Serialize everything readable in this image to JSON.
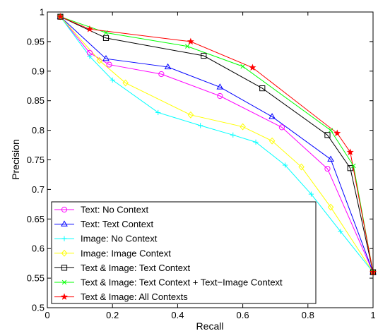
{
  "chart_data": {
    "type": "line",
    "xlabel": "Recall",
    "ylabel": "Precision",
    "xlim": [
      0,
      1
    ],
    "ylim": [
      0.5,
      1
    ],
    "xticks": [
      "0",
      "0.2",
      "0.4",
      "0.6",
      "0.8",
      "1"
    ],
    "yticks": [
      "0.5",
      "0.55",
      "0.6",
      "0.65",
      "0.7",
      "0.75",
      "0.8",
      "0.85",
      "0.9",
      "0.95",
      "1"
    ],
    "grid": false,
    "legend_position": "bottom-left",
    "series": [
      {
        "name": "Text: No Context",
        "color": "#ff00ff",
        "marker": "circle",
        "x": [
          0.04,
          0.13,
          0.19,
          0.35,
          0.53,
          0.72,
          0.86,
          1.0
        ],
        "y": [
          0.992,
          0.931,
          0.911,
          0.895,
          0.858,
          0.805,
          0.735,
          0.56
        ]
      },
      {
        "name": "Text: Text Context",
        "color": "#0000ff",
        "marker": "triangle",
        "x": [
          0.04,
          0.18,
          0.37,
          0.53,
          0.69,
          0.87,
          1.0
        ],
        "y": [
          0.992,
          0.921,
          0.907,
          0.873,
          0.823,
          0.751,
          0.56
        ]
      },
      {
        "name": "Image: No Context",
        "color": "#00ffff",
        "marker": "plus",
        "x": [
          0.04,
          0.13,
          0.2,
          0.34,
          0.47,
          0.57,
          0.64,
          0.73,
          0.81,
          0.9,
          1.0
        ],
        "y": [
          0.992,
          0.925,
          0.885,
          0.83,
          0.808,
          0.792,
          0.78,
          0.741,
          0.692,
          0.629,
          0.56
        ]
      },
      {
        "name": "Image: Image Context",
        "color": "#ffff00",
        "marker": "diamond",
        "x": [
          0.04,
          0.16,
          0.24,
          0.44,
          0.6,
          0.69,
          0.78,
          0.87,
          1.0
        ],
        "y": [
          0.992,
          0.918,
          0.88,
          0.826,
          0.806,
          0.782,
          0.738,
          0.67,
          0.56
        ]
      },
      {
        "name": "Text & Image: Text Context",
        "color": "#000000",
        "marker": "square",
        "x": [
          0.04,
          0.18,
          0.48,
          0.66,
          0.86,
          0.93,
          1.0
        ],
        "y": [
          0.992,
          0.956,
          0.926,
          0.871,
          0.792,
          0.736,
          0.56
        ]
      },
      {
        "name": "Text & Image: Text Context + Text−Image Context",
        "color": "#00ff00",
        "marker": "x",
        "x": [
          0.04,
          0.18,
          0.43,
          0.6,
          0.87,
          0.94,
          1.0
        ],
        "y": [
          0.992,
          0.965,
          0.942,
          0.908,
          0.8,
          0.74,
          0.56
        ]
      },
      {
        "name": "Text & Image: All Contexts",
        "color": "#ff0000",
        "marker": "star",
        "x": [
          0.04,
          0.13,
          0.44,
          0.63,
          0.89,
          0.93,
          1.0
        ],
        "y": [
          0.992,
          0.971,
          0.95,
          0.906,
          0.795,
          0.763,
          0.56
        ]
      }
    ]
  }
}
